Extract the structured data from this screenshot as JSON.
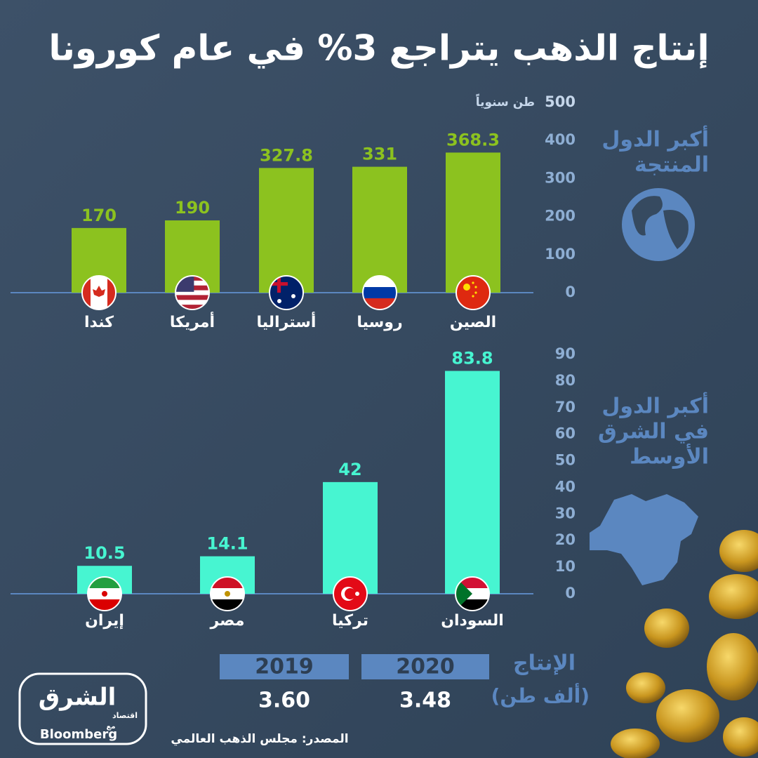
{
  "title": "إنتاج الذهب يتراجع 3% في عام كورونا",
  "chart_data": [
    {
      "type": "bar",
      "label_lines": [
        "أكبر الدول",
        "المنتجة"
      ],
      "y_unit": "طن سنوياً",
      "color": "#8cc21f",
      "categories": [
        "كندا",
        "أمريكا",
        "أستراليا",
        "روسيا",
        "الصين"
      ],
      "values": [
        170,
        190,
        327.8,
        331,
        368.3
      ],
      "ylim": [
        0,
        500
      ],
      "yticks": [
        0,
        100,
        200,
        300,
        400,
        500
      ]
    },
    {
      "type": "bar",
      "label_lines": [
        "أكبر الدول",
        "في الشرق",
        "الأوسط"
      ],
      "color": "#47f5d1",
      "categories": [
        "إيران",
        "مصر",
        "تركيا",
        "السودان"
      ],
      "values": [
        10.5,
        14.1,
        42,
        83.8
      ],
      "ylim": [
        0,
        90
      ],
      "yticks": [
        0,
        10,
        20,
        30,
        40,
        50,
        60,
        70,
        80,
        90
      ]
    }
  ],
  "production": {
    "label": "الإنتاج",
    "unit": "(ألف طن)",
    "years": [
      "2019",
      "2020"
    ],
    "totals": [
      "3.60",
      "3.48"
    ]
  },
  "source": "المصدر: مجلس الذهب العالمي",
  "logo": {
    "name": "الشرق",
    "sub": "اقتصاد",
    "with": "مع",
    "partner": "Bloomberg"
  }
}
